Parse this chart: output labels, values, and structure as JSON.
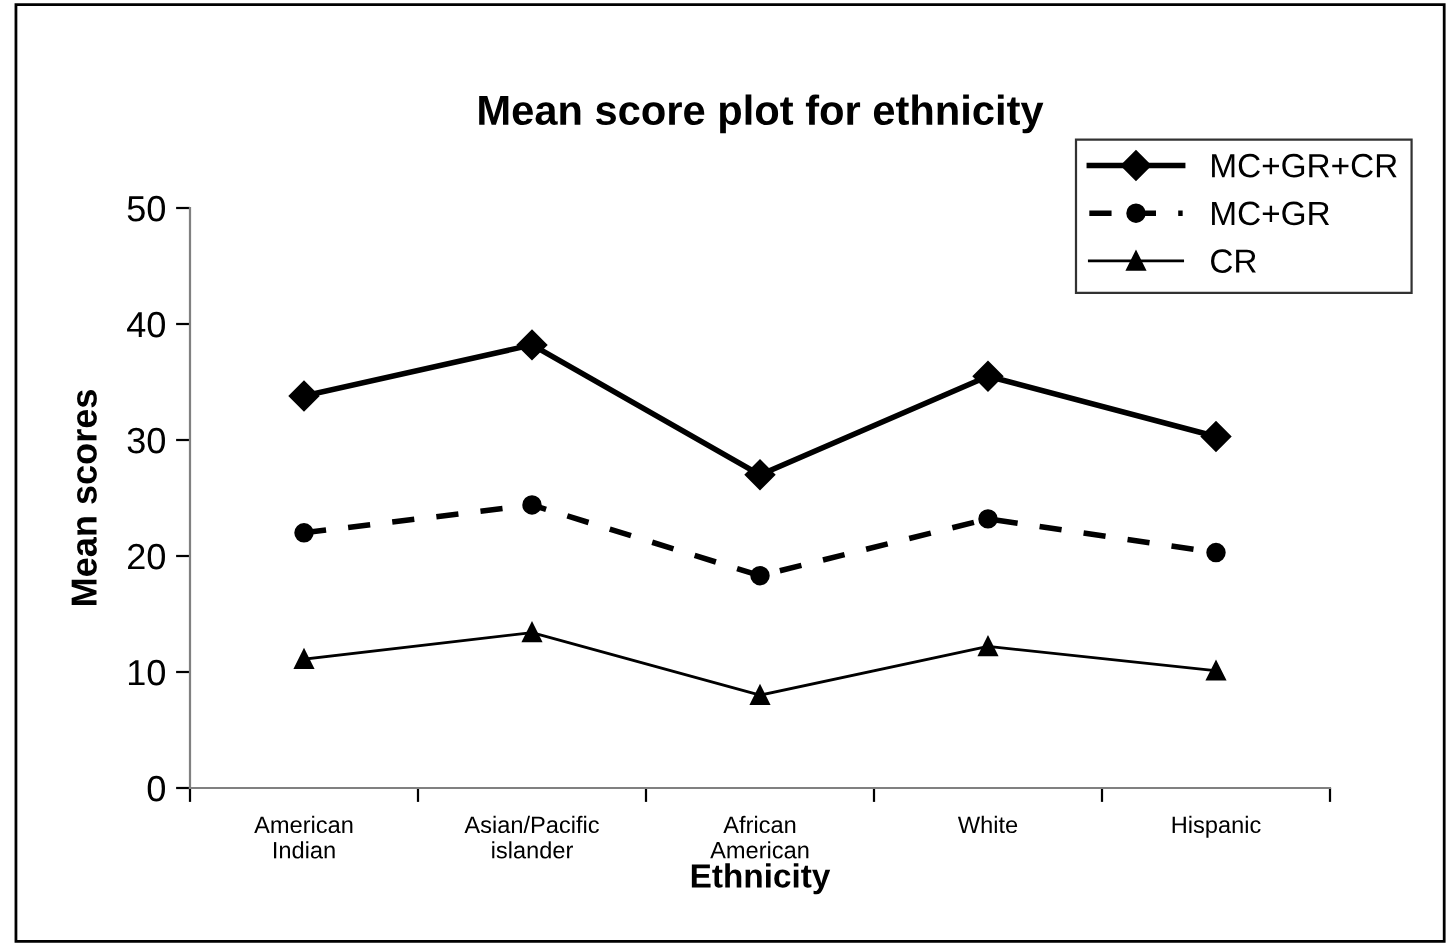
{
  "chart_data": {
    "type": "line",
    "title": "Mean score plot for ethnicity",
    "xlabel": "Ethnicity",
    "ylabel": "Mean scores",
    "categories": [
      "American\nIndian",
      "Asian/Pacific\nislander",
      "African\nAmerican",
      "White",
      "Hispanic"
    ],
    "series": [
      {
        "name": "MC+GR+CR",
        "color": "#000000",
        "values": [
          33.8,
          38.2,
          27.0,
          35.5,
          30.3
        ],
        "marker": "diamond",
        "line_style": "solid"
      },
      {
        "name": "MC+GR",
        "color": "#000000",
        "values": [
          22.0,
          24.4,
          18.3,
          23.2,
          20.3
        ],
        "marker": "circle",
        "line_style": "dashed"
      },
      {
        "name": "CR",
        "color": "#000000",
        "values": [
          11.1,
          13.4,
          8.0,
          12.2,
          10.1
        ],
        "marker": "triangle",
        "line_style": "solid"
      }
    ],
    "ylim": [
      0,
      50
    ],
    "yticks": [
      0,
      10,
      20,
      30,
      40,
      50
    ],
    "grid": false,
    "legend": "top right"
  }
}
